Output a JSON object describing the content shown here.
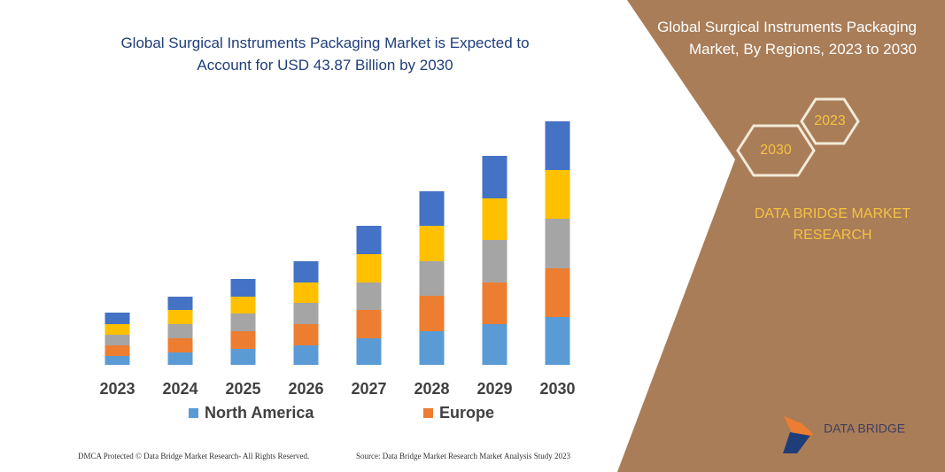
{
  "chart_data": {
    "type": "stacked_bar",
    "title": "Global Surgical Instruments Packaging Market is Expected to Account for USD 43.87 Billion by 2030",
    "categories": [
      "2023",
      "2024",
      "2025",
      "2026",
      "2027",
      "2028",
      "2029",
      "2030"
    ],
    "series": [
      {
        "name": "North America",
        "color": "#5b9bd5",
        "values": [
          10,
          14,
          18,
          22,
          30,
          38,
          46,
          54
        ]
      },
      {
        "name": "Europe",
        "color": "#ed7d31",
        "values": [
          12,
          16,
          20,
          24,
          32,
          40,
          47,
          55
        ]
      },
      {
        "color": "#a5a5a5",
        "values": [
          12,
          16,
          20,
          24,
          31,
          39,
          48,
          56
        ]
      },
      {
        "color": "#ffc000",
        "values": [
          12,
          16,
          19,
          23,
          32,
          40,
          47,
          55
        ]
      },
      {
        "color": "#4472c4",
        "values": [
          13,
          15,
          20,
          24,
          32,
          39,
          48,
          55
        ]
      }
    ],
    "ylim": [
      0,
      280
    ]
  },
  "panel": {
    "title": "Global Surgical Instruments Packaging Market, By Regions, 2023 to 2030",
    "badges": [
      "2023",
      "2030"
    ],
    "brand": "DATA BRIDGE MARKET RESEARCH"
  },
  "logo": {
    "text": "DATA BRIDGE"
  },
  "footer": {
    "left": "DMCA Protected © Data Bridge Market Research- All Rights Reserved.",
    "right": "Source: Data Bridge Market Research Market Analysis Study 2023"
  }
}
